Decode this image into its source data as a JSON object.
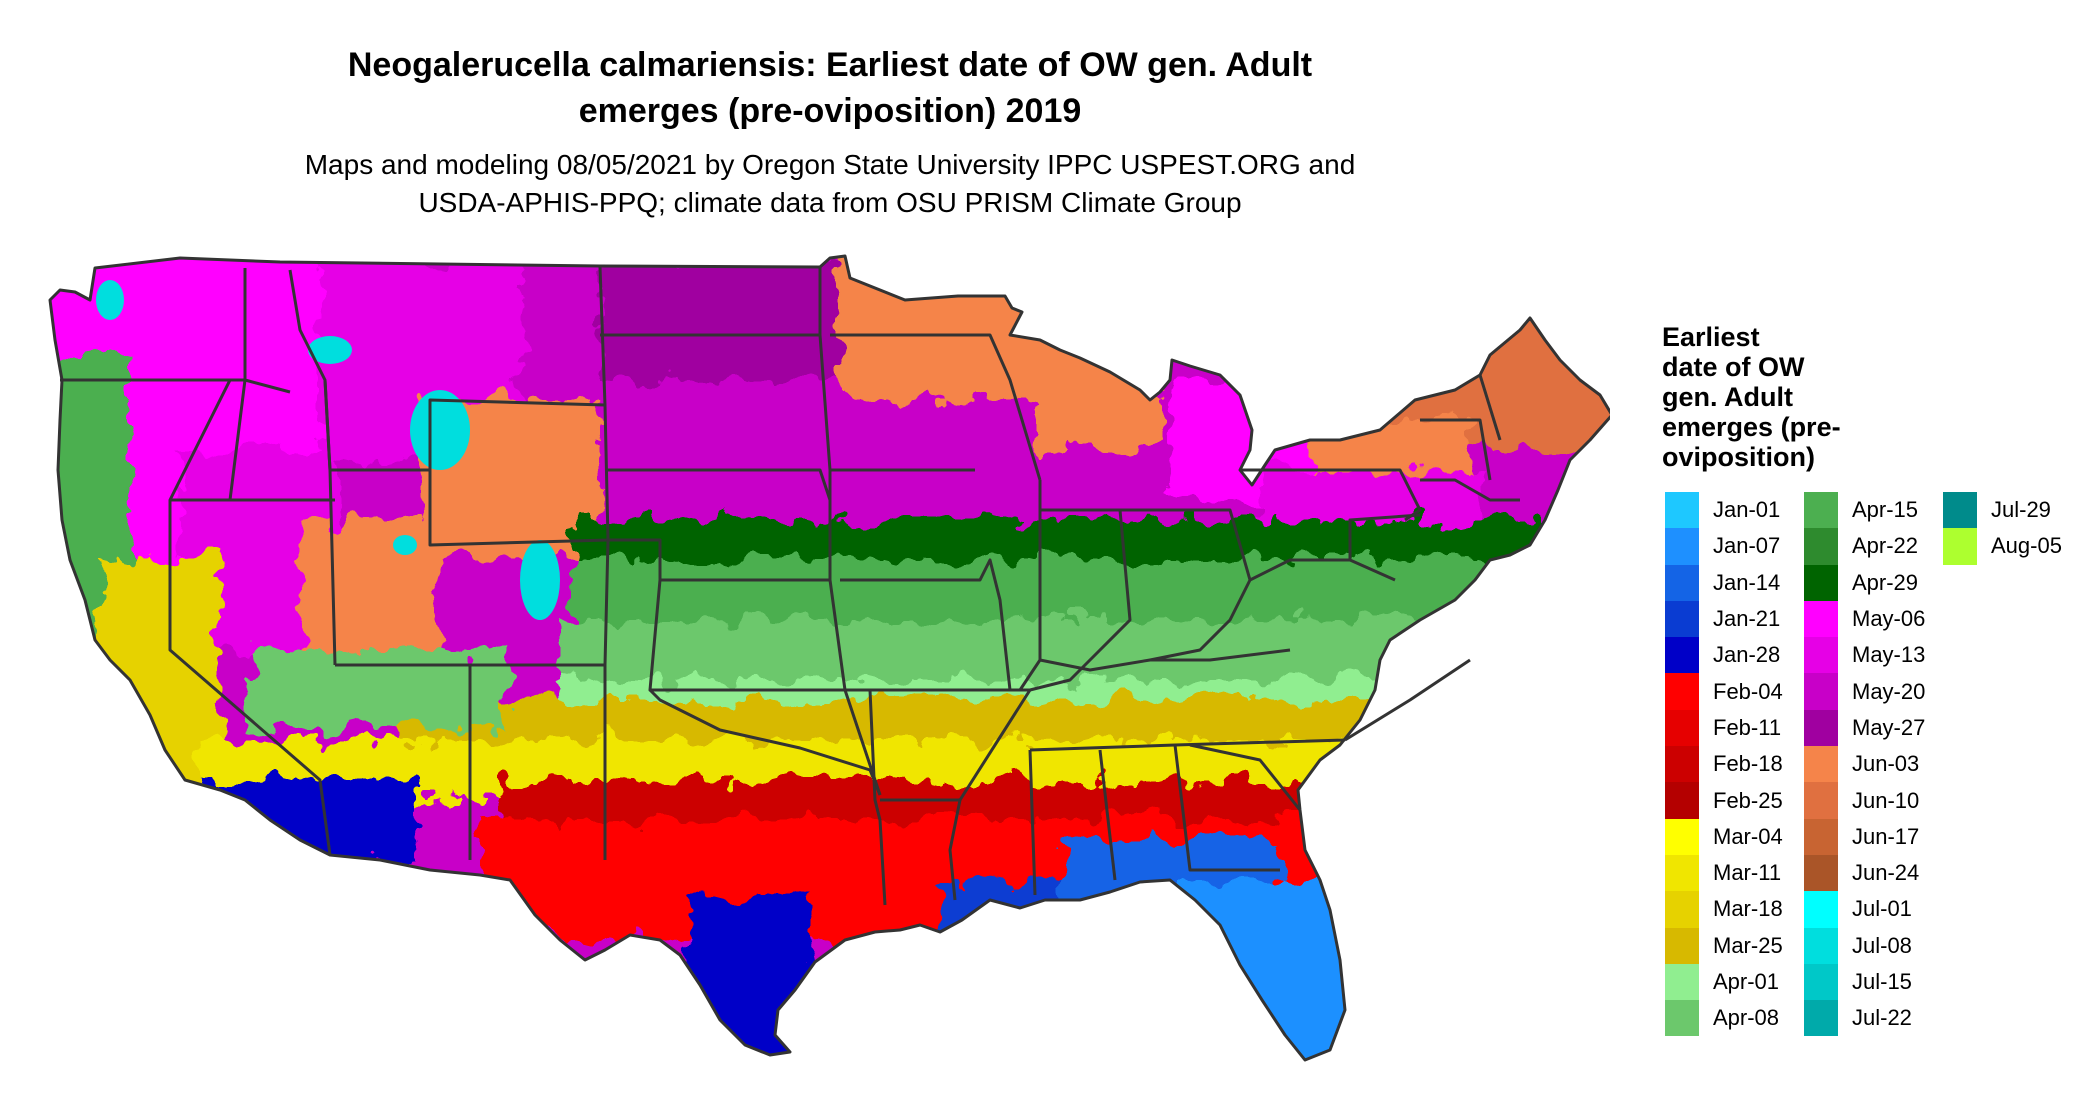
{
  "title_line1": "Neogalerucella calmariensis: Earliest date of OW gen. Adult",
  "title_line2": "emerges (pre-oviposition) 2019",
  "subtitle_line1": "Maps and modeling 08/05/2021 by Oregon State University IPPC USPEST.ORG and",
  "subtitle_line2": "USDA-APHIS-PPQ; climate data from OSU PRISM Climate Group",
  "legend": {
    "title_lines": [
      "Earliest",
      "date of OW",
      "gen. Adult",
      "emerges (pre-",
      "oviposition)"
    ],
    "columns": [
      [
        {
          "label": "Jan-01",
          "color": "#1ec8ff"
        },
        {
          "label": "Jan-07",
          "color": "#1e90ff"
        },
        {
          "label": "Jan-14",
          "color": "#1464e6"
        },
        {
          "label": "Jan-21",
          "color": "#0a3cd2"
        },
        {
          "label": "Jan-28",
          "color": "#0000c8"
        },
        {
          "label": "Feb-04",
          "color": "#ff0000"
        },
        {
          "label": "Feb-11",
          "color": "#e60000"
        },
        {
          "label": "Feb-18",
          "color": "#cc0000"
        },
        {
          "label": "Feb-25",
          "color": "#b40000"
        },
        {
          "label": "Mar-04",
          "color": "#ffff00"
        },
        {
          "label": "Mar-11",
          "color": "#f0e600"
        },
        {
          "label": "Mar-18",
          "color": "#e6d200"
        },
        {
          "label": "Mar-25",
          "color": "#d7b900"
        },
        {
          "label": "Apr-01",
          "color": "#90ee90"
        },
        {
          "label": "Apr-08",
          "color": "#6cc86c"
        }
      ],
      [
        {
          "label": "Apr-15",
          "color": "#4caf50"
        },
        {
          "label": "Apr-22",
          "color": "#2e8b2e"
        },
        {
          "label": "Apr-29",
          "color": "#006400"
        },
        {
          "label": "May-06",
          "color": "#ff00ff"
        },
        {
          "label": "May-13",
          "color": "#e600e6"
        },
        {
          "label": "May-20",
          "color": "#c800c8"
        },
        {
          "label": "May-27",
          "color": "#a000a0"
        },
        {
          "label": "Jun-03",
          "color": "#f5844a"
        },
        {
          "label": "Jun-10",
          "color": "#e07040"
        },
        {
          "label": "Jun-17",
          "color": "#c86432"
        },
        {
          "label": "Jun-24",
          "color": "#aa5528"
        },
        {
          "label": "Jul-01",
          "color": "#00ffff"
        },
        {
          "label": "Jul-08",
          "color": "#00dede"
        },
        {
          "label": "Jul-15",
          "color": "#00c8c8"
        },
        {
          "label": "Jul-22",
          "color": "#00aaaa"
        }
      ],
      [
        {
          "label": "Jul-29",
          "color": "#008b8b"
        },
        {
          "label": "Aug-05",
          "color": "#adff2f"
        }
      ]
    ]
  }
}
